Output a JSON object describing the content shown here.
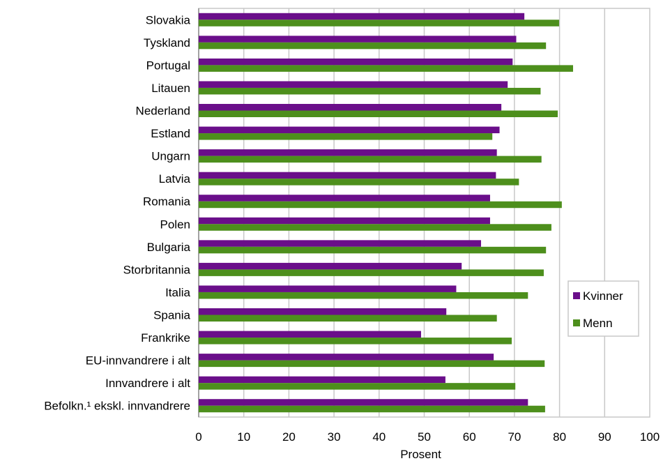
{
  "chart_data": {
    "type": "bar",
    "orientation": "horizontal",
    "categories": [
      "Slovakia",
      "Tyskland",
      "Portugal",
      "Litauen",
      "Nederland",
      "Estland",
      "Ungarn",
      "Latvia",
      "Romania",
      "Polen",
      "Bulgaria",
      "Storbritannia",
      "Italia",
      "Spania",
      "Frankrike",
      "EU-innvandrere i alt",
      "Innvandrere i alt",
      "Befolkn.¹ ekskl. innvandrere"
    ],
    "series": [
      {
        "name": "Kvinner",
        "color": "#6a0e8a",
        "values": [
          72.2,
          70.4,
          69.6,
          68.5,
          67.1,
          66.7,
          66.1,
          65.9,
          64.6,
          64.6,
          62.6,
          58.3,
          57.1,
          54.9,
          49.3,
          65.4,
          54.7,
          73.0
        ]
      },
      {
        "name": "Menn",
        "color": "#4d8f1c",
        "values": [
          79.9,
          77.0,
          83.0,
          75.8,
          79.6,
          65.1,
          76.0,
          71.0,
          80.5,
          78.2,
          77.0,
          76.5,
          73.0,
          66.1,
          69.4,
          76.7,
          70.2,
          76.8
        ]
      }
    ],
    "xlabel": "Prosent",
    "xlim": [
      0,
      100
    ],
    "xticks": [
      0,
      10,
      20,
      30,
      40,
      50,
      60,
      70,
      80,
      90,
      100
    ],
    "grid": true,
    "legend_position": "right"
  }
}
